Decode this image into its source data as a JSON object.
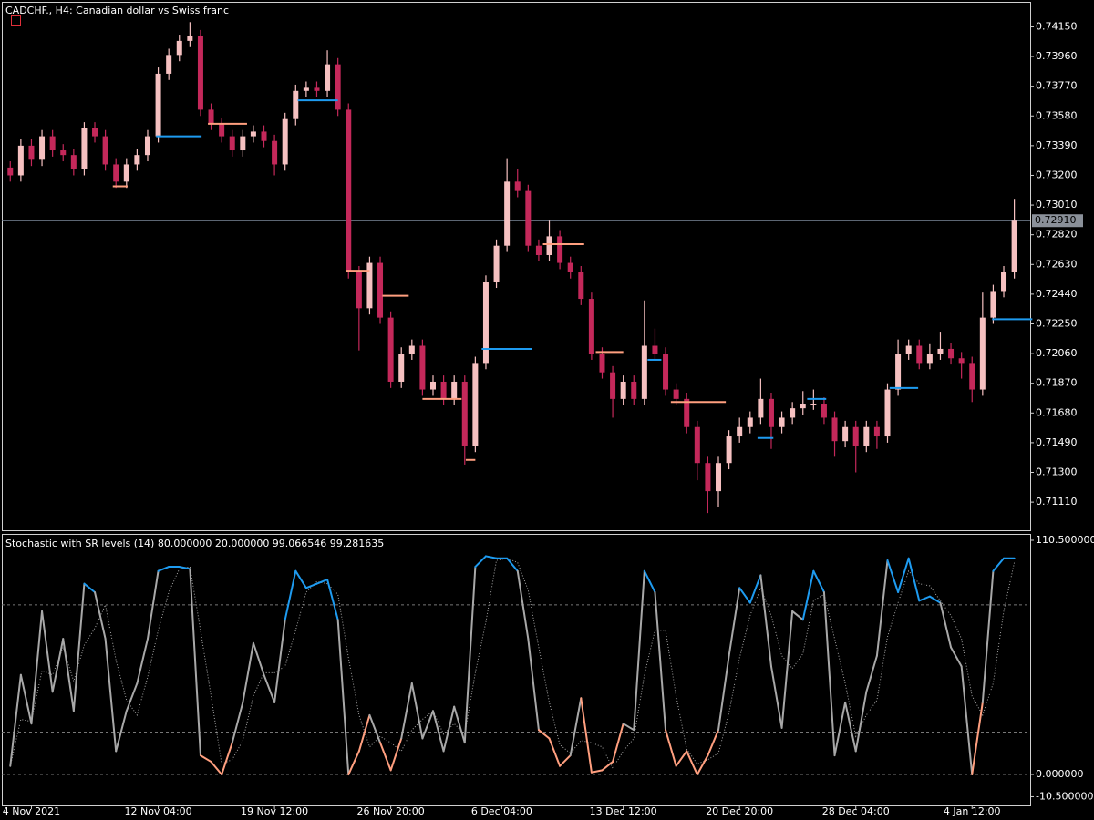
{
  "chart_data": [
    {
      "type": "candlestick",
      "title": "CADCHF., H4:  Canadian dollar vs Swiss franc",
      "up_color": "#f6c1c1",
      "down_color": "#c4285a",
      "xlim": [
        -0.8,
        96.5
      ],
      "ylim": [
        0.7093,
        0.7431
      ],
      "yticks": [
        {
          "value": 0.7415,
          "label": "0.74150"
        },
        {
          "value": 0.7396,
          "label": "0.73960"
        },
        {
          "value": 0.7377,
          "label": "0.73770"
        },
        {
          "value": 0.7358,
          "label": "0.73580"
        },
        {
          "value": 0.7339,
          "label": "0.73390"
        },
        {
          "value": 0.732,
          "label": "0.73200"
        },
        {
          "value": 0.7301,
          "label": "0.73010"
        },
        {
          "value": 0.7282,
          "label": "0.72820"
        },
        {
          "value": 0.7263,
          "label": "0.72630"
        },
        {
          "value": 0.7244,
          "label": "0.72440"
        },
        {
          "value": 0.7225,
          "label": "0.72250"
        },
        {
          "value": 0.7206,
          "label": "0.72060"
        },
        {
          "value": 0.7187,
          "label": "0.71870"
        },
        {
          "value": 0.7168,
          "label": "0.71680"
        },
        {
          "value": 0.7149,
          "label": "0.71490"
        },
        {
          "value": 0.713,
          "label": "0.71300"
        },
        {
          "value": 0.7111,
          "label": "0.71110"
        }
      ],
      "current_price": {
        "value": 0.7291,
        "label": "0.72910"
      },
      "ohlc": [
        [
          0.7325,
          0.7329,
          0.7316,
          0.732
        ],
        [
          0.732,
          0.7343,
          0.7316,
          0.7339
        ],
        [
          0.7339,
          0.7343,
          0.7326,
          0.733
        ],
        [
          0.733,
          0.7349,
          0.7326,
          0.7345
        ],
        [
          0.7345,
          0.7349,
          0.7332,
          0.7336
        ],
        [
          0.7336,
          0.734,
          0.7329,
          0.7333
        ],
        [
          0.7333,
          0.7337,
          0.732,
          0.7324
        ],
        [
          0.7324,
          0.7354,
          0.732,
          0.735
        ],
        [
          0.735,
          0.7354,
          0.7341,
          0.7345
        ],
        [
          0.7345,
          0.7349,
          0.7323,
          0.7327
        ],
        [
          0.7327,
          0.7331,
          0.7312,
          0.7316
        ],
        [
          0.7316,
          0.7331,
          0.7312,
          0.7327
        ],
        [
          0.7327,
          0.7337,
          0.7323,
          0.7333
        ],
        [
          0.7333,
          0.7349,
          0.7329,
          0.7345
        ],
        [
          0.7345,
          0.7389,
          0.7341,
          0.7385
        ],
        [
          0.7385,
          0.7401,
          0.7381,
          0.7397
        ],
        [
          0.7397,
          0.741,
          0.7393,
          0.7406
        ],
        [
          0.7406,
          0.7418,
          0.7402,
          0.7409
        ],
        [
          0.7409,
          0.7413,
          0.7358,
          0.7362
        ],
        [
          0.7362,
          0.7366,
          0.7349,
          0.7353
        ],
        [
          0.7353,
          0.7357,
          0.7341,
          0.7345
        ],
        [
          0.7345,
          0.7349,
          0.7332,
          0.7336
        ],
        [
          0.7336,
          0.7349,
          0.7332,
          0.7345
        ],
        [
          0.7345,
          0.7352,
          0.7341,
          0.7348
        ],
        [
          0.7348,
          0.7352,
          0.7338,
          0.7342
        ],
        [
          0.7342,
          0.7346,
          0.732,
          0.7327
        ],
        [
          0.7327,
          0.736,
          0.7323,
          0.7356
        ],
        [
          0.7356,
          0.7378,
          0.7352,
          0.7374
        ],
        [
          0.7374,
          0.738,
          0.737,
          0.7376
        ],
        [
          0.7376,
          0.738,
          0.737,
          0.7374
        ],
        [
          0.7374,
          0.74,
          0.737,
          0.7391
        ],
        [
          0.7391,
          0.7395,
          0.7358,
          0.7362
        ],
        [
          0.7362,
          0.7366,
          0.7254,
          0.7258
        ],
        [
          0.7258,
          0.7262,
          0.7208,
          0.7235
        ],
        [
          0.7235,
          0.7268,
          0.7231,
          0.7264
        ],
        [
          0.7264,
          0.7268,
          0.7225,
          0.7229
        ],
        [
          0.7229,
          0.7233,
          0.7184,
          0.7188
        ],
        [
          0.7188,
          0.721,
          0.7184,
          0.7206
        ],
        [
          0.7206,
          0.7215,
          0.7202,
          0.7211
        ],
        [
          0.7211,
          0.7215,
          0.7179,
          0.7183
        ],
        [
          0.7183,
          0.7192,
          0.7179,
          0.7188
        ],
        [
          0.7188,
          0.7192,
          0.7173,
          0.7177
        ],
        [
          0.7177,
          0.7192,
          0.7173,
          0.7188
        ],
        [
          0.7188,
          0.7192,
          0.7135,
          0.7147
        ],
        [
          0.7147,
          0.7204,
          0.7143,
          0.72
        ],
        [
          0.72,
          0.7256,
          0.7196,
          0.7252
        ],
        [
          0.7252,
          0.7279,
          0.7248,
          0.7275
        ],
        [
          0.7275,
          0.7331,
          0.7271,
          0.7316
        ],
        [
          0.7316,
          0.7324,
          0.7306,
          0.731
        ],
        [
          0.731,
          0.7314,
          0.7271,
          0.7275
        ],
        [
          0.7275,
          0.7279,
          0.7265,
          0.7269
        ],
        [
          0.7269,
          0.7291,
          0.7265,
          0.7281
        ],
        [
          0.7281,
          0.7285,
          0.726,
          0.7264
        ],
        [
          0.7264,
          0.7268,
          0.7254,
          0.7258
        ],
        [
          0.7258,
          0.7262,
          0.7237,
          0.7241
        ],
        [
          0.7241,
          0.7245,
          0.7202,
          0.7206
        ],
        [
          0.7206,
          0.721,
          0.719,
          0.7194
        ],
        [
          0.7194,
          0.7198,
          0.7165,
          0.7177
        ],
        [
          0.7177,
          0.7192,
          0.7173,
          0.7188
        ],
        [
          0.7188,
          0.7192,
          0.7173,
          0.7177
        ],
        [
          0.7177,
          0.724,
          0.7173,
          0.7211
        ],
        [
          0.7211,
          0.7222,
          0.7202,
          0.7206
        ],
        [
          0.7206,
          0.721,
          0.7179,
          0.7183
        ],
        [
          0.7183,
          0.7187,
          0.7173,
          0.7177
        ],
        [
          0.7177,
          0.7181,
          0.7155,
          0.7159
        ],
        [
          0.7159,
          0.7163,
          0.7125,
          0.7136
        ],
        [
          0.7136,
          0.714,
          0.7104,
          0.7118
        ],
        [
          0.7118,
          0.714,
          0.7108,
          0.7136
        ],
        [
          0.7136,
          0.7157,
          0.7132,
          0.7153
        ],
        [
          0.7153,
          0.7165,
          0.7149,
          0.7159
        ],
        [
          0.7159,
          0.7169,
          0.7155,
          0.7165
        ],
        [
          0.7165,
          0.719,
          0.7161,
          0.7177
        ],
        [
          0.7177,
          0.7181,
          0.7145,
          0.7159
        ],
        [
          0.7159,
          0.7169,
          0.7155,
          0.7165
        ],
        [
          0.7165,
          0.7175,
          0.7161,
          0.7171
        ],
        [
          0.7171,
          0.7182,
          0.7167,
          0.7174
        ],
        [
          0.7174,
          0.7183,
          0.717,
          0.7174
        ],
        [
          0.7174,
          0.7178,
          0.7161,
          0.7165
        ],
        [
          0.7165,
          0.7169,
          0.714,
          0.715
        ],
        [
          0.715,
          0.7163,
          0.7146,
          0.7159
        ],
        [
          0.7159,
          0.7163,
          0.713,
          0.7147
        ],
        [
          0.7147,
          0.7163,
          0.7143,
          0.7159
        ],
        [
          0.7159,
          0.7163,
          0.7145,
          0.7153
        ],
        [
          0.7153,
          0.7187,
          0.7149,
          0.7183
        ],
        [
          0.7183,
          0.7215,
          0.7179,
          0.7206
        ],
        [
          0.7206,
          0.7215,
          0.7202,
          0.7211
        ],
        [
          0.7211,
          0.7215,
          0.7196,
          0.72
        ],
        [
          0.72,
          0.7212,
          0.7196,
          0.7206
        ],
        [
          0.7206,
          0.722,
          0.7202,
          0.7209
        ],
        [
          0.7209,
          0.7213,
          0.7199,
          0.7203
        ],
        [
          0.7203,
          0.7207,
          0.719,
          0.72
        ],
        [
          0.72,
          0.7204,
          0.7175,
          0.7183
        ],
        [
          0.7183,
          0.7245,
          0.7179,
          0.7229
        ],
        [
          0.7229,
          0.725,
          0.7225,
          0.7246
        ],
        [
          0.7246,
          0.7262,
          0.7242,
          0.7258
        ],
        [
          0.7258,
          0.7305,
          0.7254,
          0.7291
        ]
      ],
      "sr_levels": [
        {
          "from": 9.7,
          "to": 11.1,
          "value": 0.7313,
          "color": "#ff9f7f"
        },
        {
          "from": 13.8,
          "to": 18.1,
          "value": 0.7345,
          "color": "#1e9bf0"
        },
        {
          "from": 18.7,
          "to": 22.4,
          "value": 0.7353,
          "color": "#ff9f7f"
        },
        {
          "from": 27.2,
          "to": 31.0,
          "value": 0.7368,
          "color": "#1e9bf0"
        },
        {
          "from": 31.8,
          "to": 34.0,
          "value": 0.7259,
          "color": "#ff9f7f"
        },
        {
          "from": 35.2,
          "to": 37.7,
          "value": 0.7243,
          "color": "#ff9f7f"
        },
        {
          "from": 39.0,
          "to": 42.7,
          "value": 0.7177,
          "color": "#ff9f7f"
        },
        {
          "from": 43.1,
          "to": 44.0,
          "value": 0.7138,
          "color": "#ff9f7f"
        },
        {
          "from": 44.6,
          "to": 49.4,
          "value": 0.7209,
          "color": "#1e9bf0"
        },
        {
          "from": 50.4,
          "to": 54.3,
          "value": 0.7276,
          "color": "#ff9f7f"
        },
        {
          "from": 55.4,
          "to": 58.0,
          "value": 0.7207,
          "color": "#ff9f7f"
        },
        {
          "from": 60.3,
          "to": 61.6,
          "value": 0.7202,
          "color": "#1e9bf0"
        },
        {
          "from": 62.5,
          "to": 67.7,
          "value": 0.7175,
          "color": "#ff9f7f"
        },
        {
          "from": 70.7,
          "to": 72.2,
          "value": 0.7152,
          "color": "#1e9bf0"
        },
        {
          "from": 75.4,
          "to": 77.2,
          "value": 0.7177,
          "color": "#1e9bf0"
        },
        {
          "from": 83.2,
          "to": 85.9,
          "value": 0.7184,
          "color": "#1e9bf0"
        },
        {
          "from": 92.9,
          "to": 96.7,
          "value": 0.7228,
          "color": "#1e9bf0"
        }
      ]
    },
    {
      "type": "line",
      "title": "Stochastic with SR levels (14) 80.000000 20.000000 99.066546 99.281635",
      "xlim": [
        -0.8,
        96.5
      ],
      "ylim": [
        -14.6,
        113.5
      ],
      "yticks": [
        {
          "value": 110.5,
          "label": "110.500000"
        },
        {
          "value": 0,
          "label": "0.000000"
        },
        {
          "value": -10.5,
          "label": "-10.500000"
        }
      ],
      "levels": [
        80,
        20,
        0
      ],
      "xticks": [
        {
          "value": 2,
          "label": "4 Nov 2021"
        },
        {
          "value": 14,
          "label": "12 Nov 04:00"
        },
        {
          "value": 25,
          "label": "19 Nov 12:00"
        },
        {
          "value": 36,
          "label": "26 Nov 20:00"
        },
        {
          "value": 46.5,
          "label": "6 Dec 04:00"
        },
        {
          "value": 58,
          "label": "13 Dec 12:00"
        },
        {
          "value": 69,
          "label": "20 Dec 20:00"
        },
        {
          "value": 80,
          "label": "28 Dec 04:00"
        },
        {
          "value": 91,
          "label": "4 Jan 12:00"
        }
      ],
      "colors": {
        "high": "#1e9bf0",
        "mid": "#a8a8a8",
        "low": "#ff9f7f",
        "signal": "#a8a8a8"
      },
      "series": [
        {
          "values": [
            4,
            47,
            24,
            77,
            39,
            64,
            30,
            90,
            86,
            64,
            11,
            30,
            43,
            64,
            96,
            98,
            98,
            97,
            9,
            6,
            0,
            15,
            34,
            62,
            47,
            34,
            73,
            96,
            88,
            90,
            92,
            73,
            0,
            11,
            28,
            15,
            2,
            17,
            43,
            17,
            30,
            11,
            32,
            15,
            98,
            103,
            102,
            102,
            96,
            64,
            21,
            17,
            4,
            9,
            36,
            1,
            2,
            6,
            24,
            21,
            96,
            86,
            21,
            4,
            11,
            0,
            9,
            21,
            56,
            88,
            81,
            94,
            51,
            22,
            77,
            73,
            96,
            86,
            9,
            34,
            11,
            39,
            56,
            101,
            86,
            102,
            82,
            84,
            81,
            60,
            51,
            0,
            34,
            96,
            102,
            102
          ]
        },
        {
          "values": [
            4,
            26,
            25,
            49,
            47,
            60,
            44,
            61,
            69,
            80,
            54,
            35,
            28,
            46,
            68,
            86,
            97,
            98,
            68,
            37,
            5,
            7,
            16,
            37,
            48,
            48,
            51,
            68,
            86,
            91,
            90,
            85,
            55,
            28,
            13,
            18,
            15,
            11,
            21,
            26,
            30,
            19,
            24,
            19,
            48,
            72,
            101,
            102,
            100,
            87,
            60,
            34,
            14,
            10,
            16,
            15,
            13,
            3,
            11,
            17,
            47,
            68,
            68,
            37,
            12,
            5,
            7,
            10,
            29,
            55,
            75,
            88,
            75,
            56,
            50,
            57,
            82,
            85,
            64,
            43,
            18,
            28,
            35,
            65,
            81,
            96,
            90,
            89,
            82,
            75,
            64,
            37,
            28,
            43,
            77,
            100
          ]
        }
      ]
    }
  ]
}
